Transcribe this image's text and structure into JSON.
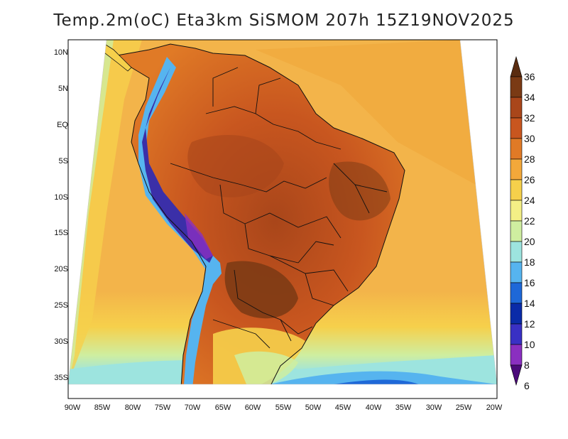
{
  "title": "Temp.2m(oC) Eta3km SiSMOM 207h 15Z19NOV2025",
  "lat_labels": [
    "10N",
    "5N",
    "EQ",
    "5S",
    "10S",
    "15S",
    "20S",
    "25S",
    "30S",
    "35S"
  ],
  "lon_labels": [
    "90W",
    "85W",
    "80W",
    "75W",
    "70W",
    "65W",
    "60W",
    "55W",
    "50W",
    "45W",
    "40W",
    "35W",
    "30W",
    "25W",
    "20W"
  ],
  "colorbar": {
    "labels": [
      "36",
      "34",
      "32",
      "30",
      "28",
      "26",
      "24",
      "22",
      "20",
      "18",
      "16",
      "14",
      "12",
      "10",
      "8",
      "6"
    ],
    "colors": [
      "#5a2c10",
      "#7a3a14",
      "#a9461a",
      "#c8561f",
      "#e07a26",
      "#f3a83a",
      "#f6d04b",
      "#f4ef86",
      "#cfeea0",
      "#9de4df",
      "#56b4ef",
      "#1e68d8",
      "#0a2ba8",
      "#3930c4",
      "#8a2fc0",
      "#4b0a7a"
    ]
  },
  "legend_colors": {
    "ocean": "#f3b44a",
    "ocean_cool": "#f7dc6a",
    "land_hot": "#c8561f",
    "land_hotter": "#a9461a",
    "andes_cold": "#3b2fa8",
    "south_cool": "#56b4ef"
  }
}
